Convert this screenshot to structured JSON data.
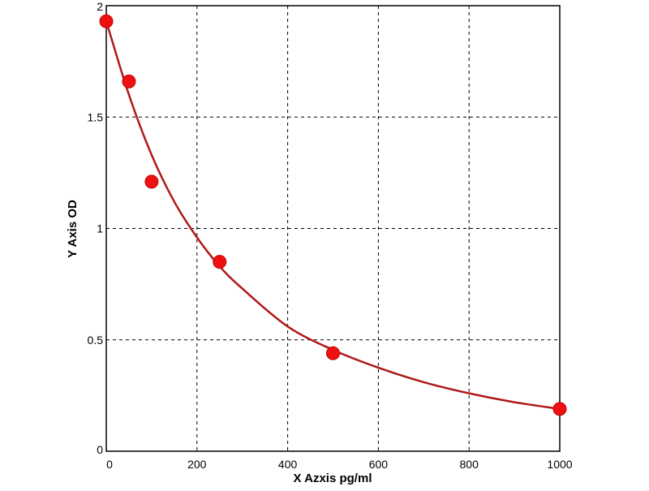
{
  "chart_data": {
    "type": "scatter",
    "title": "",
    "xlabel": "X Azxis pg/ml",
    "ylabel": "Y Axis OD",
    "xlim": [
      0,
      1000
    ],
    "ylim": [
      0,
      2
    ],
    "x_ticks": [
      "0",
      "200",
      "400",
      "600",
      "800",
      "1000"
    ],
    "y_ticks": [
      "0",
      "0.5",
      "1",
      "1.5",
      "2"
    ],
    "grid": true,
    "points": {
      "x": [
        0,
        50,
        100,
        250,
        500,
        1000
      ],
      "y": [
        1.93,
        1.66,
        1.21,
        0.85,
        0.44,
        0.19
      ]
    },
    "fit_curve": {
      "x": [
        0,
        50,
        100,
        150,
        200,
        250,
        300,
        400,
        500,
        600,
        700,
        800,
        900,
        1000
      ],
      "y": [
        1.93,
        1.6,
        1.33,
        1.12,
        0.96,
        0.83,
        0.73,
        0.56,
        0.455,
        0.375,
        0.31,
        0.26,
        0.22,
        0.19
      ]
    },
    "colors": {
      "points": "#ee1111",
      "curve": "#b01818",
      "axis": "#000000",
      "grid": "#000000"
    }
  }
}
